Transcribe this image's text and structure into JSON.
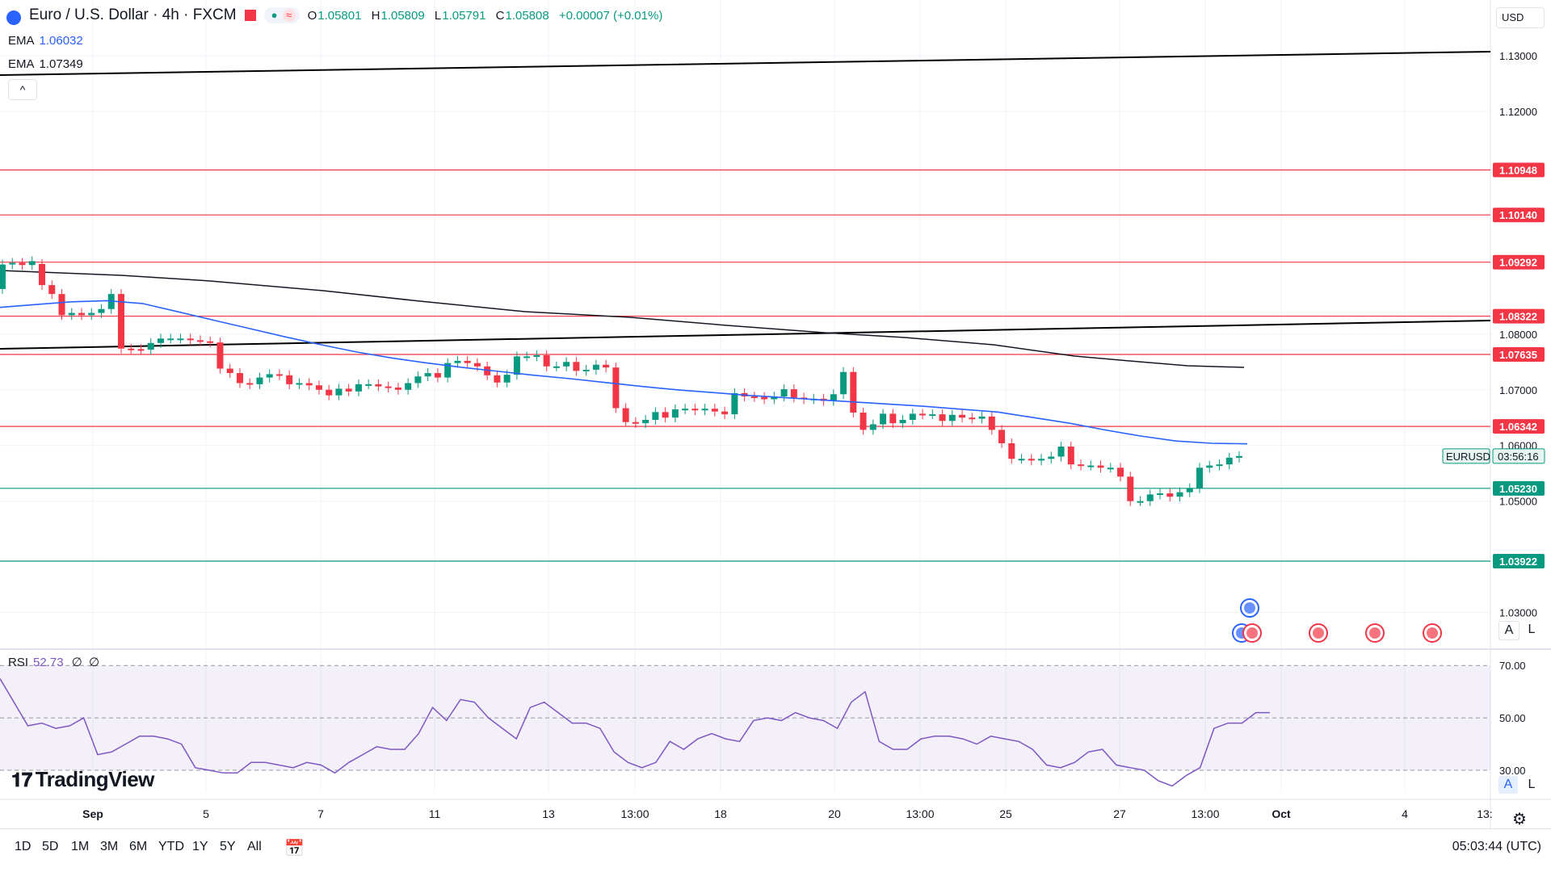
{
  "header": {
    "symbol_title": "Euro / U.S. Dollar · 4h · FXCM",
    "ohlc": [
      {
        "k": "O",
        "v": "1.05801"
      },
      {
        "k": "H",
        "v": "1.05809"
      },
      {
        "k": "L",
        "v": "1.05791"
      },
      {
        "k": "C",
        "v": "1.05808"
      }
    ],
    "change": "+0.00007 (+0.01%)",
    "ema1_label": "EMA",
    "ema1_value": "1.06032",
    "ema2_label": "EMA",
    "ema2_value": "1.07349",
    "collapse_symbol": "^"
  },
  "axis": {
    "currency": "USD",
    "ticks": [
      "1.13000",
      "1.12000",
      "1.08000",
      "1.07000",
      "1.06000",
      "1.05000",
      "1.03000"
    ]
  },
  "price_lines": [
    {
      "label": "1.10948",
      "color": "#f23645"
    },
    {
      "label": "1.10140",
      "color": "#f23645"
    },
    {
      "label": "1.09292",
      "color": "#f23645"
    },
    {
      "label": "1.08322",
      "color": "#f23645"
    },
    {
      "label": "1.07635",
      "color": "#f23645"
    },
    {
      "label": "1.06342",
      "color": "#f23645"
    },
    {
      "label": "1.05230",
      "color": "#089981"
    },
    {
      "label": "1.03922",
      "color": "#089981"
    }
  ],
  "current": {
    "symbol": "EURUSD",
    "countdown": "03:56:16"
  },
  "rsi": {
    "label": "RSI",
    "value": "52.73",
    "extra1": "∅",
    "extra2": "∅",
    "ticks": [
      "70.00",
      "50.00",
      "30.00"
    ]
  },
  "time_axis": [
    "Sep",
    "5",
    "7",
    "11",
    "13",
    "13:00",
    "18",
    "20",
    "13:00",
    "25",
    "27",
    "13:00",
    "Oct",
    "4",
    "13:"
  ],
  "logo": "TradingView",
  "ab_top": {
    "a": "A",
    "l": "L"
  },
  "ab_bottom": {
    "a": "A",
    "l": "L"
  },
  "ranges": [
    "1D",
    "5D",
    "1M",
    "3M",
    "6M",
    "YTD",
    "1Y",
    "5Y",
    "All"
  ],
  "clock": "05:03:44 (UTC)",
  "colors": {
    "up": "#089981",
    "down": "#f23645",
    "ema_fast": "#2962ff",
    "rsi": "#7e57c2"
  },
  "chart_data": {
    "type": "candlestick",
    "title": "Euro / U.S. Dollar · 4h · FXCM",
    "ylim": [
      1.024,
      1.14
    ],
    "rsi_ylim": [
      22,
      75
    ],
    "candles": [
      {
        "o": 1.0881,
        "c": 1.0925
      },
      {
        "o": 1.0925,
        "c": 1.0928
      },
      {
        "o": 1.0928,
        "c": 1.0924
      },
      {
        "o": 1.0924,
        "c": 1.0931
      },
      {
        "o": 1.0926,
        "c": 1.0888
      },
      {
        "o": 1.0888,
        "c": 1.0872
      },
      {
        "o": 1.0872,
        "c": 1.0834
      },
      {
        "o": 1.0834,
        "c": 1.0838
      },
      {
        "o": 1.0838,
        "c": 1.0834
      },
      {
        "o": 1.0834,
        "c": 1.0838
      },
      {
        "o": 1.0838,
        "c": 1.0845
      },
      {
        "o": 1.0845,
        "c": 1.0872
      },
      {
        "o": 1.0872,
        "c": 1.0774
      },
      {
        "o": 1.0774,
        "c": 1.0773
      },
      {
        "o": 1.0773,
        "c": 1.0772
      },
      {
        "o": 1.0772,
        "c": 1.0784
      },
      {
        "o": 1.0784,
        "c": 1.0792
      },
      {
        "o": 1.0792,
        "c": 1.0792
      },
      {
        "o": 1.0792,
        "c": 1.0792
      },
      {
        "o": 1.0792,
        "c": 1.0789
      },
      {
        "o": 1.0789,
        "c": 1.0787
      },
      {
        "o": 1.0787,
        "c": 1.0785
      },
      {
        "o": 1.0785,
        "c": 1.0738
      },
      {
        "o": 1.0738,
        "c": 1.073
      },
      {
        "o": 1.073,
        "c": 1.0712
      },
      {
        "o": 1.0712,
        "c": 1.071
      },
      {
        "o": 1.071,
        "c": 1.0722
      },
      {
        "o": 1.0722,
        "c": 1.0728
      },
      {
        "o": 1.0728,
        "c": 1.0726
      },
      {
        "o": 1.0726,
        "c": 1.071
      },
      {
        "o": 1.071,
        "c": 1.0712
      },
      {
        "o": 1.0712,
        "c": 1.0708
      },
      {
        "o": 1.0708,
        "c": 1.07
      },
      {
        "o": 1.07,
        "c": 1.069
      },
      {
        "o": 1.069,
        "c": 1.0702
      },
      {
        "o": 1.0702,
        "c": 1.0697
      },
      {
        "o": 1.0697,
        "c": 1.071
      },
      {
        "o": 1.071,
        "c": 1.071
      },
      {
        "o": 1.071,
        "c": 1.0706
      },
      {
        "o": 1.0706,
        "c": 1.0704
      },
      {
        "o": 1.0704,
        "c": 1.07
      },
      {
        "o": 1.07,
        "c": 1.0712
      },
      {
        "o": 1.0712,
        "c": 1.0724
      },
      {
        "o": 1.0724,
        "c": 1.073
      },
      {
        "o": 1.073,
        "c": 1.0722
      },
      {
        "o": 1.0722,
        "c": 1.0748
      },
      {
        "o": 1.0748,
        "c": 1.0752
      },
      {
        "o": 1.0752,
        "c": 1.0748
      },
      {
        "o": 1.0748,
        "c": 1.0742
      },
      {
        "o": 1.0742,
        "c": 1.0726
      },
      {
        "o": 1.0726,
        "c": 1.0713
      },
      {
        "o": 1.0713,
        "c": 1.0727
      },
      {
        "o": 1.0727,
        "c": 1.076
      },
      {
        "o": 1.076,
        "c": 1.076
      },
      {
        "o": 1.076,
        "c": 1.0762
      },
      {
        "o": 1.0762,
        "c": 1.0742
      },
      {
        "o": 1.0742,
        "c": 1.0742
      },
      {
        "o": 1.0742,
        "c": 1.075
      },
      {
        "o": 1.075,
        "c": 1.0734
      },
      {
        "o": 1.0734,
        "c": 1.0736
      },
      {
        "o": 1.0736,
        "c": 1.0745
      },
      {
        "o": 1.0745,
        "c": 1.074
      },
      {
        "o": 1.074,
        "c": 1.0667
      },
      {
        "o": 1.0667,
        "c": 1.0642
      },
      {
        "o": 1.0642,
        "c": 1.064
      },
      {
        "o": 1.064,
        "c": 1.0646
      },
      {
        "o": 1.0646,
        "c": 1.066
      },
      {
        "o": 1.066,
        "c": 1.065
      },
      {
        "o": 1.065,
        "c": 1.0665
      },
      {
        "o": 1.0665,
        "c": 1.0666
      },
      {
        "o": 1.0666,
        "c": 1.0663
      },
      {
        "o": 1.0663,
        "c": 1.0666
      },
      {
        "o": 1.0666,
        "c": 1.0661
      },
      {
        "o": 1.0661,
        "c": 1.0656
      },
      {
        "o": 1.0656,
        "c": 1.0694
      },
      {
        "o": 1.0694,
        "c": 1.0688
      },
      {
        "o": 1.0688,
        "c": 1.0687
      },
      {
        "o": 1.0687,
        "c": 1.0683
      },
      {
        "o": 1.0683,
        "c": 1.0688
      },
      {
        "o": 1.0688,
        "c": 1.0701
      },
      {
        "o": 1.0701,
        "c": 1.0686
      },
      {
        "o": 1.0686,
        "c": 1.0683
      },
      {
        "o": 1.0683,
        "c": 1.0684
      },
      {
        "o": 1.0684,
        "c": 1.068
      },
      {
        "o": 1.068,
        "c": 1.0692
      },
      {
        "o": 1.0692,
        "c": 1.0732
      },
      {
        "o": 1.0732,
        "c": 1.0659
      },
      {
        "o": 1.0659,
        "c": 1.0628
      },
      {
        "o": 1.0628,
        "c": 1.0638
      },
      {
        "o": 1.0638,
        "c": 1.0657
      },
      {
        "o": 1.0657,
        "c": 1.064
      },
      {
        "o": 1.064,
        "c": 1.0646
      },
      {
        "o": 1.0646,
        "c": 1.0657
      },
      {
        "o": 1.0657,
        "c": 1.0656
      },
      {
        "o": 1.0656,
        "c": 1.0656
      },
      {
        "o": 1.0656,
        "c": 1.0644
      },
      {
        "o": 1.0644,
        "c": 1.0655
      },
      {
        "o": 1.0655,
        "c": 1.065
      },
      {
        "o": 1.065,
        "c": 1.0648
      },
      {
        "o": 1.0648,
        "c": 1.0652
      },
      {
        "o": 1.0652,
        "c": 1.0628
      },
      {
        "o": 1.0628,
        "c": 1.0604
      },
      {
        "o": 1.0604,
        "c": 1.0576
      },
      {
        "o": 1.0576,
        "c": 1.0576
      },
      {
        "o": 1.0576,
        "c": 1.0573
      },
      {
        "o": 1.0573,
        "c": 1.0576
      },
      {
        "o": 1.0576,
        "c": 1.058
      },
      {
        "o": 1.058,
        "c": 1.0598
      },
      {
        "o": 1.0598,
        "c": 1.0566
      },
      {
        "o": 1.0566,
        "c": 1.0564
      },
      {
        "o": 1.0564,
        "c": 1.0564
      },
      {
        "o": 1.0564,
        "c": 1.056
      },
      {
        "o": 1.056,
        "c": 1.056
      },
      {
        "o": 1.056,
        "c": 1.0544
      },
      {
        "o": 1.0544,
        "c": 1.05
      },
      {
        "o": 1.05,
        "c": 1.05
      },
      {
        "o": 1.05,
        "c": 1.0512
      },
      {
        "o": 1.0512,
        "c": 1.0514
      },
      {
        "o": 1.0514,
        "c": 1.0508
      },
      {
        "o": 1.0508,
        "c": 1.0516
      },
      {
        "o": 1.0516,
        "c": 1.0523
      },
      {
        "o": 1.0523,
        "c": 1.056
      },
      {
        "o": 1.056,
        "c": 1.0564
      },
      {
        "o": 1.0564,
        "c": 1.0566
      },
      {
        "o": 1.0566,
        "c": 1.0578
      },
      {
        "o": 1.0578,
        "c": 1.0581
      }
    ],
    "ema_fast": [
      1.0848,
      1.0853,
      1.0858,
      1.086,
      1.0855,
      1.084,
      1.0825,
      1.081,
      1.0795,
      1.0781,
      1.0768,
      1.0757,
      1.0748,
      1.074,
      1.0733,
      1.0726,
      1.072,
      1.0713,
      1.0706,
      1.07,
      1.0695,
      1.069,
      1.0686,
      1.0682,
      1.0678,
      1.0674,
      1.067,
      1.0665,
      1.066,
      1.065,
      1.064,
      1.0628,
      1.0617,
      1.0608,
      1.0604,
      1.0603
    ],
    "rsi": [
      65,
      56,
      47,
      48,
      46,
      47,
      50,
      36,
      37,
      40,
      43,
      43,
      42,
      40,
      31,
      30,
      29,
      29,
      33,
      33,
      32,
      31,
      33,
      32,
      29,
      33,
      36,
      39,
      38,
      38,
      44,
      54,
      49,
      57,
      56,
      50,
      46,
      42,
      54,
      56,
      52,
      48,
      48,
      46,
      37,
      33,
      31,
      33,
      41,
      38,
      42,
      44,
      42,
      41,
      49,
      50,
      49,
      52,
      50,
      49,
      46,
      56,
      60,
      41,
      38,
      38,
      42,
      43,
      43,
      42,
      40,
      43,
      42,
      41,
      38,
      32,
      31,
      33,
      37,
      38,
      32,
      31,
      30,
      26,
      24,
      28,
      31,
      46,
      48,
      48,
      52,
      52
    ]
  }
}
